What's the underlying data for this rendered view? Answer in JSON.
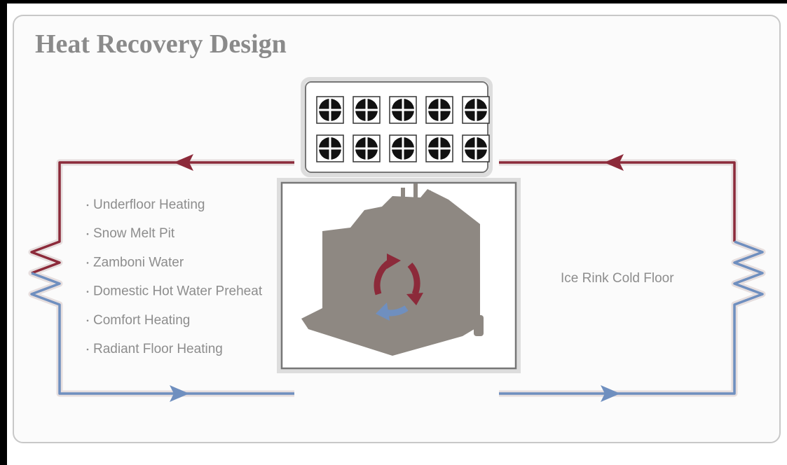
{
  "title": "Heat Recovery Design",
  "heat_uses": [
    "Underfloor Heating",
    "Snow Melt Pit",
    "Zamboni Water",
    "Domestic Hot Water Preheat",
    "Comfort Heating",
    "Radiant Floor Heating"
  ],
  "cold_use": "Ice Rink Cold Floor"
}
